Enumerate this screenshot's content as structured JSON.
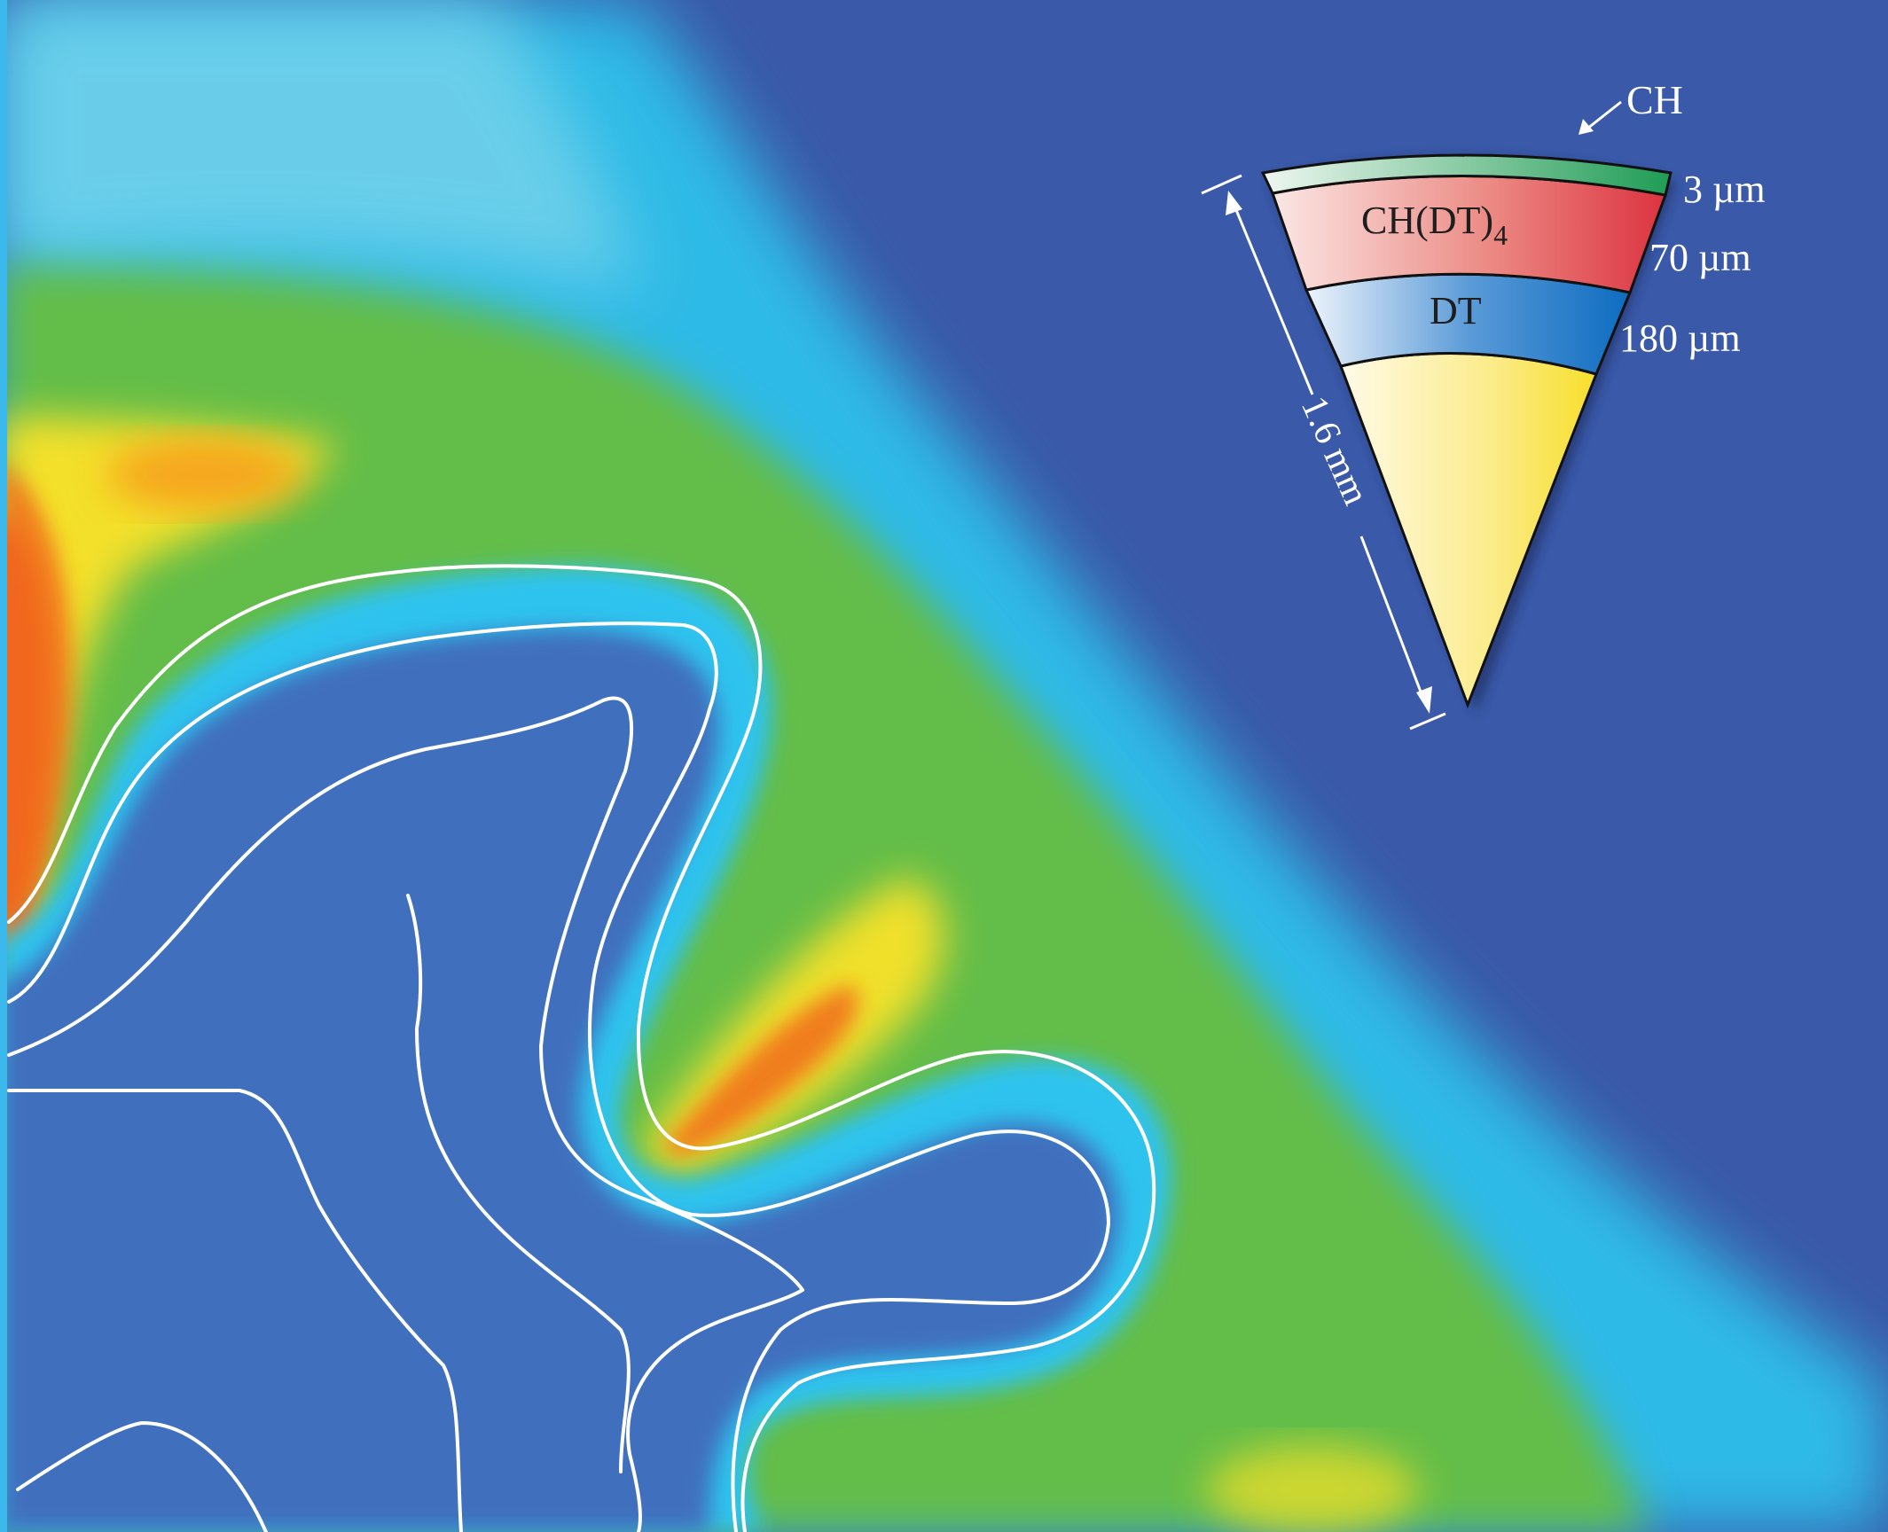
{
  "figure": {
    "target_layers": {
      "outer_label": "CH",
      "layer1_label": "CH(DT)",
      "layer1_subscript": "4",
      "layer2_label": "DT",
      "thickness_outer": "3 µm",
      "thickness_layer1": "70 µm",
      "thickness_layer2": "180 µm",
      "radius_label": "1.6 mm"
    },
    "colors": {
      "background": "#3a59a8",
      "ch_layer": "#2aa55f",
      "chdt4_layer": "#e0404a",
      "dt_layer": "#1a7ac8",
      "core": "#f6e23a",
      "contour_line": "#ffffff"
    }
  }
}
